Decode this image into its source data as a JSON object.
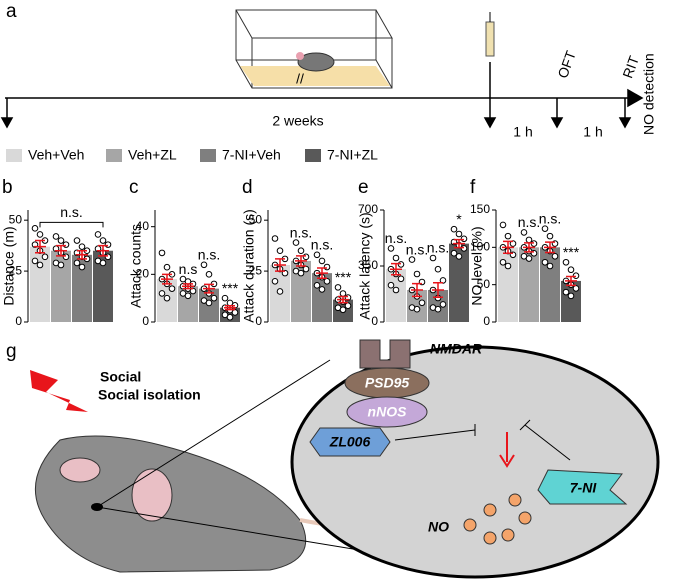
{
  "panel_a": {
    "label": "a",
    "gap_mark": "//",
    "duration": "2 weeks",
    "interval_1": "1 h",
    "interval_2": "1 h",
    "step_1": "OFT",
    "step_2": "RIT",
    "step_3": "NO detection"
  },
  "legend": [
    {
      "name": "Veh+Veh",
      "color": "#d9d9d9"
    },
    {
      "name": "Veh+ZL",
      "color": "#a6a6a6"
    },
    {
      "name": "7-NI+Veh",
      "color": "#7f7f7f"
    },
    {
      "name": "7-NI+ZL",
      "color": "#595959"
    }
  ],
  "chart_data": [
    {
      "type": "bar",
      "panel": "b",
      "ylabel": "Distance (m)",
      "values": [
        37,
        35,
        33,
        35
      ],
      "errors": [
        3,
        2.5,
        2,
        2.5
      ],
      "ylim": [
        0,
        55
      ],
      "yticks": [
        0,
        25,
        50
      ],
      "bracket_label": "n.s.",
      "points": [
        [
          46,
          43,
          40,
          38,
          35,
          32,
          30,
          28
        ],
        [
          42,
          40,
          38,
          36,
          34,
          32,
          29,
          28
        ],
        [
          40,
          37,
          35,
          34,
          32,
          31,
          29,
          27
        ],
        [
          43,
          40,
          38,
          36,
          34,
          32,
          30,
          29
        ]
      ]
    },
    {
      "type": "bar",
      "panel": "c",
      "ylabel": "Attack counts",
      "values": [
        18,
        15,
        14,
        6
      ],
      "errors": [
        2,
        1,
        1.8,
        0.8
      ],
      "ylim": [
        0,
        47
      ],
      "yticks": [
        0,
        20,
        40
      ],
      "annotations": [
        null,
        "n.s",
        "n.s.",
        "***"
      ],
      "points": [
        [
          29,
          23,
          20,
          18,
          16,
          14,
          12,
          10
        ],
        [
          18,
          17,
          16,
          15,
          14,
          13,
          12,
          11
        ],
        [
          24,
          20,
          16,
          14,
          12,
          10,
          9,
          8
        ],
        [
          10,
          8,
          7,
          6,
          5,
          4,
          3,
          2
        ]
      ]
    },
    {
      "type": "bar",
      "panel": "d",
      "ylabel": "Attack duration (s)",
      "values": [
        28,
        30,
        24,
        11
      ],
      "errors": [
        3,
        2.5,
        2.5,
        1.5
      ],
      "ylim": [
        0,
        55
      ],
      "yticks": [
        0,
        25,
        50
      ],
      "annotations": [
        null,
        "n.s.",
        "n.s.",
        "***"
      ],
      "points": [
        [
          41,
          35,
          31,
          28,
          26,
          24,
          20,
          15
        ],
        [
          39,
          35,
          32,
          30,
          28,
          26,
          25,
          24
        ],
        [
          33,
          30,
          27,
          24,
          22,
          20,
          18,
          16
        ],
        [
          17,
          14,
          12,
          11,
          10,
          8,
          7,
          6
        ]
      ]
    },
    {
      "type": "bar",
      "panel": "e",
      "ylabel": "Attack latency (s)",
      "values": [
        330,
        200,
        200,
        490
      ],
      "errors": [
        35,
        40,
        45,
        25
      ],
      "ylim": [
        0,
        700
      ],
      "yticks": [
        0,
        350,
        700
      ],
      "annotations": [
        "n.s.",
        "n.s.",
        "n.s.",
        "*"
      ],
      "points": [
        [
          460,
          400,
          360,
          330,
          300,
          270,
          230,
          200
        ],
        [
          390,
          300,
          250,
          200,
          160,
          120,
          90,
          80
        ],
        [
          400,
          330,
          260,
          200,
          150,
          110,
          90,
          80
        ],
        [
          580,
          550,
          520,
          500,
          480,
          460,
          430,
          410
        ]
      ]
    },
    {
      "type": "bar",
      "panel": "f",
      "ylabel": "NO level (%)",
      "values": [
        100,
        100,
        100,
        55
      ],
      "errors": [
        8,
        6,
        7,
        6
      ],
      "ylim": [
        0,
        150
      ],
      "yticks": [
        0,
        50,
        100,
        150
      ],
      "annotations": [
        null,
        "n.s.",
        "n.s.",
        "***"
      ],
      "points": [
        [
          130,
          115,
          105,
          100,
          95,
          90,
          80,
          75
        ],
        [
          120,
          110,
          105,
          100,
          95,
          92,
          88,
          85
        ],
        [
          125,
          115,
          105,
          100,
          95,
          88,
          80,
          75
        ],
        [
          80,
          70,
          62,
          55,
          50,
          45,
          40,
          35
        ]
      ]
    }
  ],
  "panel_g": {
    "label": "g",
    "stimulus": "Social isolation",
    "receptor": "NMDAR",
    "scaffold": "PSD95",
    "enzyme": "nNOS",
    "drug_1": "ZL006",
    "drug_2": "7-NI",
    "product": "NO"
  }
}
